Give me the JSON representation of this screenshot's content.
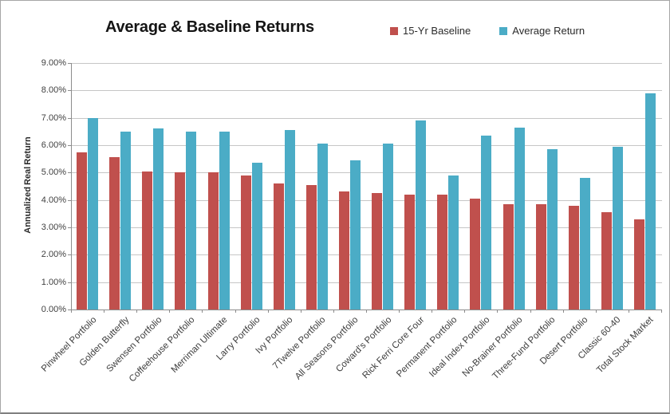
{
  "chart_data": {
    "type": "bar",
    "title": "Average & Baseline Returns",
    "xlabel": "",
    "ylabel": "Annualized Real Return",
    "ylim": [
      0,
      9
    ],
    "y_tick_labels": [
      "0.00%",
      "1.00%",
      "2.00%",
      "3.00%",
      "4.00%",
      "5.00%",
      "6.00%",
      "7.00%",
      "8.00%",
      "9.00%"
    ],
    "grid": true,
    "legend_position": "top-right",
    "categories": [
      "Pinwheel Portfolio",
      "Golden Butterfly",
      "Swensen Portfolio",
      "Coffeehouse Portfolio",
      "Merriman Ultimate",
      "Larry Portfolio",
      "Ivy Portfolio",
      "7Twelve Portfolio",
      "All Seasons Portfolio",
      "Coward's Portfolio",
      "Rick Ferri Core Four",
      "Permanent Portfolio",
      "Ideal Index Portfolio",
      "No-Brainer Portfolio",
      "Three-Fund Portfolio",
      "Desert Portfolio",
      "Classic 60-40",
      "Total Stock Market"
    ],
    "series": [
      {
        "name": "15-Yr Baseline",
        "color": "#C0504D",
        "values": [
          5.75,
          5.55,
          5.05,
          5.0,
          5.0,
          4.9,
          4.6,
          4.55,
          4.3,
          4.25,
          4.2,
          4.2,
          4.05,
          3.85,
          3.85,
          3.8,
          3.55,
          3.3
        ]
      },
      {
        "name": "Average Return",
        "color": "#4BACC6",
        "values": [
          7.0,
          6.5,
          6.6,
          6.5,
          6.5,
          5.35,
          6.55,
          6.05,
          5.45,
          6.05,
          6.9,
          4.9,
          6.35,
          6.65,
          5.85,
          4.8,
          5.95,
          7.9
        ]
      }
    ]
  }
}
